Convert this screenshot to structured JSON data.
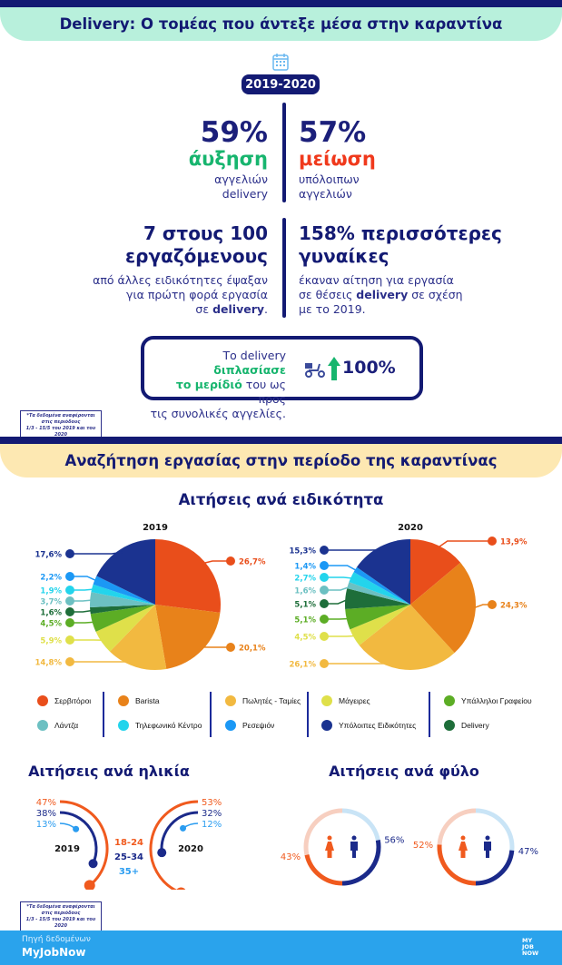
{
  "header": {
    "title": "Delivery: Ο τομέας που άντεξε μέσα στην καραντίνα",
    "icon": "calendar-icon",
    "period": "2019-2020"
  },
  "stats": {
    "increase": {
      "value": "59%",
      "label": "άυξηση",
      "desc1": "αγγελιών",
      "desc2": "delivery"
    },
    "decrease": {
      "value": "57%",
      "label": "μείωση",
      "desc1": "υπόλοιπων",
      "desc2": "αγγελιών"
    },
    "workers": {
      "line1": "7 στους 100",
      "line2": "εργαζόμενους",
      "desc1": "από άλλες ειδικότητες έψαξαν",
      "desc2": "για πρώτη φορά εργασία",
      "desc3_pre": "σε ",
      "desc3_bold": "delivery",
      "desc3_post": "."
    },
    "women": {
      "line1": "158% περισσότερες",
      "line2": "γυναίκες",
      "desc1": "έκαναν αίτηση για εργασία",
      "desc2_pre": "σε θέσεις ",
      "desc2_bold": "delivery",
      "desc2_post": " σε σχέση",
      "desc3": "με το 2019."
    }
  },
  "share_box": {
    "pre": "Το delivery ",
    "bold1": "διπλασίασε",
    "bold2": "το μερίδιό",
    "post1": " του ως προς",
    "line3": "τις συνολικές αγγελίες.",
    "icons": [
      "scooter-icon",
      "arrow-up-icon"
    ],
    "value": "100%"
  },
  "footnote": {
    "line1": "*Τα δεδομένα αναφέρονται στις περιόδους",
    "line2": "1/3 - 15/5 του 2019 και του 2020"
  },
  "section2": {
    "title": "Αναζήτηση εργασίας στην περίοδο της καραντίνας"
  },
  "colors": {
    "navy": "#131a73",
    "mint": "#b8f0dc",
    "yellow": "#fde8b2",
    "green": "#17b56e",
    "red": "#f0391c",
    "orange": "#f05a1e",
    "footer": "#2aa3ec"
  },
  "chart_data": [
    {
      "type": "pie",
      "title": "Αιτήσεις ανά ειδικότητα",
      "categories": [
        "Σερβιτόροι",
        "Barista",
        "Πωλητές - Ταμίες",
        "Μάγειρες",
        "Υπάλληλοι Γραφείου",
        "Λάντζα",
        "Τηλεφωνικό Κέντρο",
        "Ρεσεψιόν",
        "Υπόλοιπες Ειδικότητες",
        "Delivery"
      ],
      "category_colors": [
        "#e94e1b",
        "#e8821a",
        "#f2b940",
        "#dfe04a",
        "#5cad25",
        "#6cc0c2",
        "#23d4ec",
        "#1b98f5",
        "#1b3390",
        "#1e6e3a"
      ],
      "series": [
        {
          "name": "2019",
          "values": [
            26.7,
            20.1,
            14.8,
            5.9,
            4.5,
            3.7,
            1.9,
            2.2,
            17.6,
            1.6
          ],
          "labels": [
            "26,7%",
            "20,1%",
            "14,8%",
            "5,9%",
            "4,5%",
            "3,7%",
            "1,9%",
            "2,2%",
            "17,6%",
            "1,6%"
          ]
        },
        {
          "name": "2020",
          "values": [
            13.9,
            24.3,
            26.1,
            4.5,
            5.1,
            1.6,
            2.7,
            1.4,
            15.3,
            5.1
          ],
          "labels": [
            "13,9%",
            "24,3%",
            "26,1%",
            "4,5%",
            "5,1%",
            "1,6%",
            "2,7%",
            "1,4%",
            "15,3%",
            "5,1%"
          ]
        }
      ],
      "legend": "bottom"
    },
    {
      "type": "radial-bar",
      "title": "Αιτήσεις ανά ηλικία",
      "categories": [
        "18-24",
        "25-34",
        "35+"
      ],
      "category_colors": [
        "#f05a1e",
        "#1b2a8a",
        "#2a9cf0"
      ],
      "series": [
        {
          "name": "2019",
          "values": [
            47,
            38,
            13
          ],
          "labels": [
            "47%",
            "38%",
            "13%"
          ]
        },
        {
          "name": "2020",
          "values": [
            53,
            32,
            12
          ],
          "labels": [
            "53%",
            "32%",
            "12%"
          ]
        }
      ]
    },
    {
      "type": "donut",
      "title": "Αιτήσεις ανά φύλο",
      "categories": [
        "Γυναίκες",
        "Άνδρες"
      ],
      "category_icons": [
        "female-icon",
        "male-icon"
      ],
      "category_colors": [
        "#f05a1e",
        "#1b2a8a"
      ],
      "series": [
        {
          "name": "2019",
          "values": [
            43,
            56
          ],
          "labels": [
            "43%",
            "56%"
          ]
        },
        {
          "name": "2020",
          "values": [
            52,
            47
          ],
          "labels": [
            "52%",
            "47%"
          ]
        }
      ]
    }
  ],
  "footer": {
    "source_label": "Πηγή δεδομένων",
    "source": "MyJobNow",
    "logo": "MY JOB NOW"
  }
}
